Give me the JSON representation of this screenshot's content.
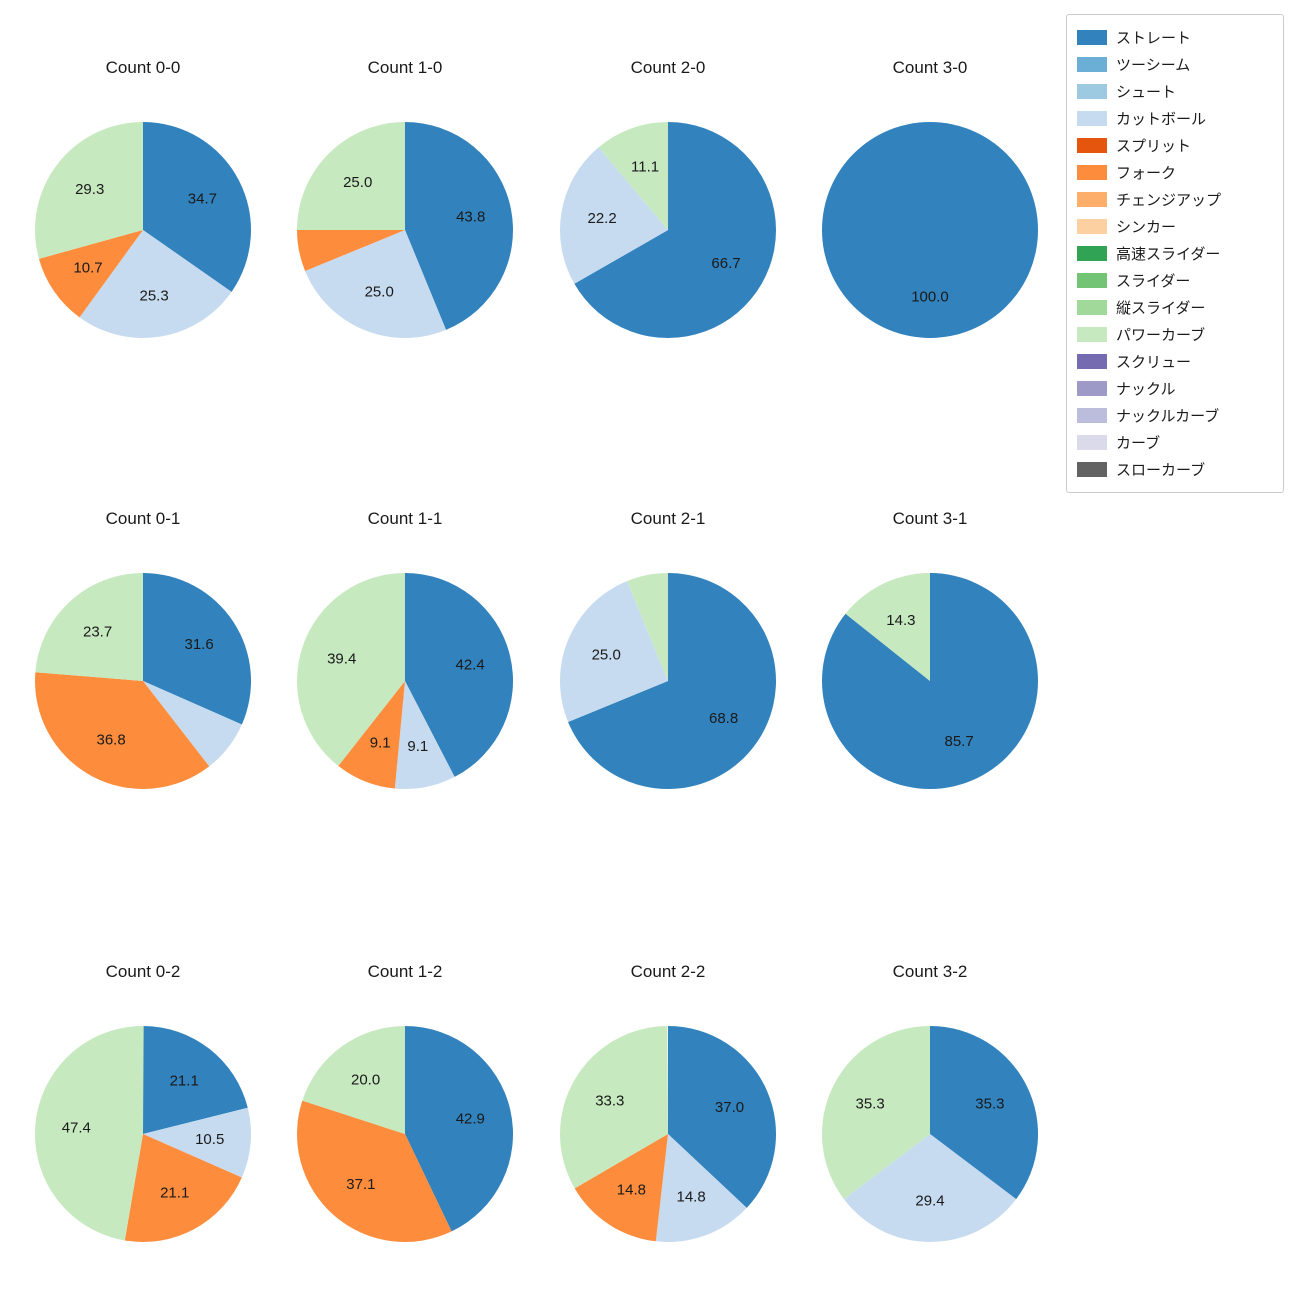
{
  "figure": {
    "background": "#ffffff",
    "text_color": "#1a1a1a"
  },
  "legend": {
    "position": "top-right",
    "items": [
      {
        "label": "ストレート",
        "color": "#3182bd"
      },
      {
        "label": "ツーシーム",
        "color": "#6baed6"
      },
      {
        "label": "シュート",
        "color": "#9ecae1"
      },
      {
        "label": "カットボール",
        "color": "#c6dbef"
      },
      {
        "label": "スプリット",
        "color": "#e6550d"
      },
      {
        "label": "フォーク",
        "color": "#fd8d3c"
      },
      {
        "label": "チェンジアップ",
        "color": "#fdae6b"
      },
      {
        "label": "シンカー",
        "color": "#fdd0a2"
      },
      {
        "label": "高速スライダー",
        "color": "#31a354"
      },
      {
        "label": "スライダー",
        "color": "#74c476"
      },
      {
        "label": "縦スライダー",
        "color": "#a1d99b"
      },
      {
        "label": "パワーカーブ",
        "color": "#c7e9c0"
      },
      {
        "label": "スクリュー",
        "color": "#756bb1"
      },
      {
        "label": "ナックル",
        "color": "#9e9ac8"
      },
      {
        "label": "ナックルカーブ",
        "color": "#bcbddc"
      },
      {
        "label": "カーブ",
        "color": "#dadaeb"
      },
      {
        "label": "スローカーブ",
        "color": "#636363"
      }
    ]
  },
  "chart_data": {
    "type": "pie",
    "start_angle": 90,
    "direction": "clockwise",
    "value_unit": "percent",
    "grid": {
      "rows": 3,
      "cols": 4
    },
    "charts": [
      {
        "title": "Count 0-0",
        "slices": [
          {
            "pitch": "ストレート",
            "pct": 34.7,
            "label_shown": true
          },
          {
            "pitch": "カットボール",
            "pct": 25.3,
            "label_shown": true
          },
          {
            "pitch": "フォーク",
            "pct": 10.7,
            "label_shown": true
          },
          {
            "pitch": "パワーカーブ",
            "pct": 29.3,
            "label_shown": true
          }
        ]
      },
      {
        "title": "Count 1-0",
        "slices": [
          {
            "pitch": "ストレート",
            "pct": 43.8,
            "label_shown": true
          },
          {
            "pitch": "カットボール",
            "pct": 25.0,
            "label_shown": true
          },
          {
            "pitch": "フォーク",
            "pct": 6.2,
            "label_shown": false
          },
          {
            "pitch": "パワーカーブ",
            "pct": 25.0,
            "label_shown": true
          }
        ]
      },
      {
        "title": "Count 2-0",
        "slices": [
          {
            "pitch": "ストレート",
            "pct": 66.7,
            "label_shown": true
          },
          {
            "pitch": "カットボール",
            "pct": 22.2,
            "label_shown": true
          },
          {
            "pitch": "パワーカーブ",
            "pct": 11.1,
            "label_shown": true
          }
        ]
      },
      {
        "title": "Count 3-0",
        "slices": [
          {
            "pitch": "ストレート",
            "pct": 100.0,
            "label_shown": true
          }
        ]
      },
      {
        "title": "Count 0-1",
        "slices": [
          {
            "pitch": "ストレート",
            "pct": 31.6,
            "label_shown": true
          },
          {
            "pitch": "カットボール",
            "pct": 7.9,
            "label_shown": false
          },
          {
            "pitch": "フォーク",
            "pct": 36.8,
            "label_shown": true
          },
          {
            "pitch": "パワーカーブ",
            "pct": 23.7,
            "label_shown": true
          }
        ]
      },
      {
        "title": "Count 1-1",
        "slices": [
          {
            "pitch": "ストレート",
            "pct": 42.4,
            "label_shown": true
          },
          {
            "pitch": "カットボール",
            "pct": 9.1,
            "label_shown": true
          },
          {
            "pitch": "フォーク",
            "pct": 9.1,
            "label_shown": true
          },
          {
            "pitch": "パワーカーブ",
            "pct": 39.4,
            "label_shown": true
          }
        ]
      },
      {
        "title": "Count 2-1",
        "slices": [
          {
            "pitch": "ストレート",
            "pct": 68.8,
            "label_shown": true
          },
          {
            "pitch": "カットボール",
            "pct": 25.0,
            "label_shown": true
          },
          {
            "pitch": "パワーカーブ",
            "pct": 6.2,
            "label_shown": false
          }
        ]
      },
      {
        "title": "Count 3-1",
        "slices": [
          {
            "pitch": "ストレート",
            "pct": 85.7,
            "label_shown": true
          },
          {
            "pitch": "パワーカーブ",
            "pct": 14.3,
            "label_shown": true
          }
        ]
      },
      {
        "title": "Count 0-2",
        "slices": [
          {
            "pitch": "ストレート",
            "pct": 21.1,
            "label_shown": true
          },
          {
            "pitch": "カットボール",
            "pct": 10.5,
            "label_shown": true
          },
          {
            "pitch": "フォーク",
            "pct": 21.1,
            "label_shown": true
          },
          {
            "pitch": "パワーカーブ",
            "pct": 47.4,
            "label_shown": true
          }
        ]
      },
      {
        "title": "Count 1-2",
        "slices": [
          {
            "pitch": "ストレート",
            "pct": 42.9,
            "label_shown": true
          },
          {
            "pitch": "フォーク",
            "pct": 37.1,
            "label_shown": true
          },
          {
            "pitch": "パワーカーブ",
            "pct": 20.0,
            "label_shown": true
          }
        ]
      },
      {
        "title": "Count 2-2",
        "slices": [
          {
            "pitch": "ストレート",
            "pct": 37.0,
            "label_shown": true
          },
          {
            "pitch": "カットボール",
            "pct": 14.8,
            "label_shown": true
          },
          {
            "pitch": "フォーク",
            "pct": 14.8,
            "label_shown": true
          },
          {
            "pitch": "パワーカーブ",
            "pct": 33.3,
            "label_shown": true
          }
        ]
      },
      {
        "title": "Count 3-2",
        "slices": [
          {
            "pitch": "ストレート",
            "pct": 35.3,
            "label_shown": true
          },
          {
            "pitch": "カットボール",
            "pct": 29.4,
            "label_shown": true
          },
          {
            "pitch": "パワーカーブ",
            "pct": 35.3,
            "label_shown": true
          }
        ]
      }
    ]
  }
}
